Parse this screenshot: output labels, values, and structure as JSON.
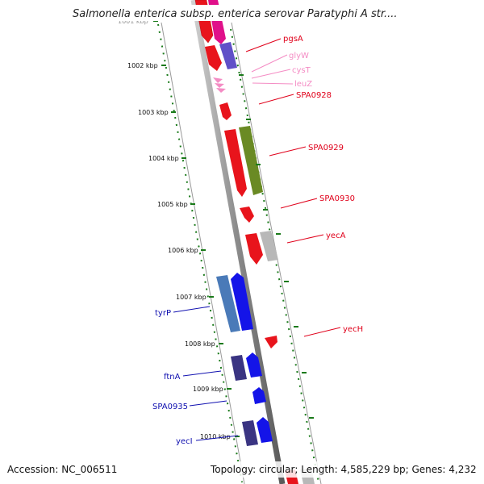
{
  "title": "Salmonella enterica subsp. enterica serovar Paratyphi A str....",
  "footer": {
    "accession": "Accession: NC_006511",
    "topology": "Topology: circular; Length: 4,585,229 bp; Genes: 4,232"
  },
  "kbp_labels": [
    "1001 kbp",
    "1002 kbp",
    "1003 kbp",
    "1004 kbp",
    "1005 kbp",
    "1006 kbp",
    "1007 kbp",
    "1008 kbp",
    "1009 kbp",
    "1010 kbp"
  ],
  "gene_labels_right": [
    {
      "name": "pgsA",
      "color": "#e0001a"
    },
    {
      "name": "glyW",
      "color": "#f48cc4"
    },
    {
      "name": "cysT",
      "color": "#f48cc4"
    },
    {
      "name": "leuZ",
      "color": "#f48cc4"
    },
    {
      "name": "SPA0928",
      "color": "#e0001a"
    },
    {
      "name": "SPA0929",
      "color": "#e0001a"
    },
    {
      "name": "SPA0930",
      "color": "#e0001a"
    },
    {
      "name": "yecA",
      "color": "#e0001a"
    },
    {
      "name": "yecH",
      "color": "#e0001a"
    }
  ],
  "gene_labels_left": [
    {
      "name": "tyrP",
      "color": "#1010b0"
    },
    {
      "name": "ftnA",
      "color": "#1010b0"
    },
    {
      "name": "SPA0935",
      "color": "#1010b0"
    },
    {
      "name": "yecI",
      "color": "#1010b0"
    }
  ],
  "colors": {
    "forward_gene": "#e8141c",
    "trna": "#f48cc4",
    "reverse_gene": "#1414e8",
    "olive_gene": "#6a8a24",
    "purple_gene": "#6050c8",
    "dark_purple_gene": "#3a3482",
    "steel_gene": "#4a7ab8",
    "grey_gene": "#b8b8b8",
    "tick": "#1a7a1a"
  }
}
